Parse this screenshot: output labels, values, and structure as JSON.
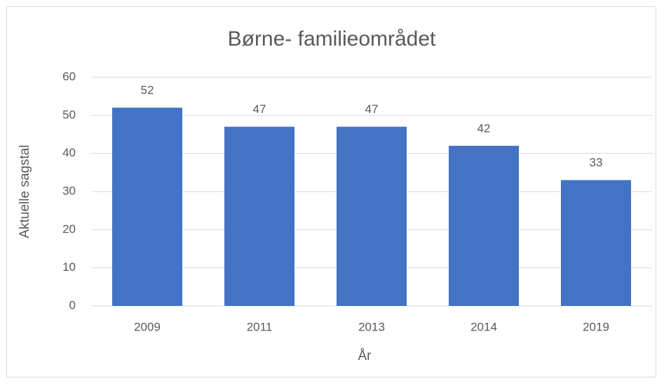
{
  "chart_data": {
    "type": "bar",
    "title": "Børne- familieområdet",
    "x_label": "År",
    "y_label": "Aktuelle sagstal",
    "categories": [
      "2009",
      "2011",
      "2013",
      "2014",
      "2019"
    ],
    "values": [
      52,
      47,
      47,
      42,
      33
    ],
    "color": "#4472c4",
    "ylim": [
      0,
      60
    ],
    "yticks": [
      0,
      10,
      20,
      30,
      40,
      50,
      60
    ],
    "grid": true,
    "data_labels": true
  }
}
